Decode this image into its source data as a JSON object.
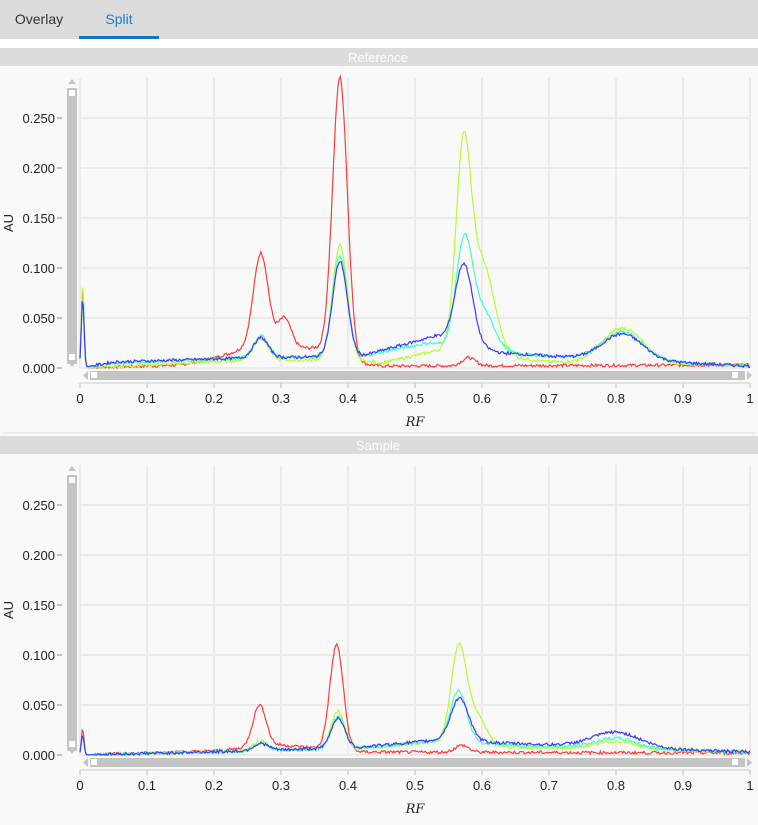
{
  "tabs": [
    {
      "label": "Overlay",
      "active": false
    },
    {
      "label": "Split",
      "active": true
    }
  ],
  "colors": {
    "red": "#ff3b3b",
    "green": "#b4ff2e",
    "cyan": "#3dffc8",
    "blue": "#3b3bff",
    "accent": "#0a78c8"
  },
  "chart_data": [
    {
      "type": "line",
      "title": "Reference",
      "xlabel": "RF",
      "ylabel": "AU",
      "xlim": [
        0,
        1
      ],
      "ylim": [
        0,
        0.29
      ],
      "xticks": [
        "0",
        "0.1",
        "0.2",
        "0.3",
        "0.4",
        "0.5",
        "0.6",
        "0.7",
        "0.8",
        "0.9",
        "1"
      ],
      "yticks": [
        "0.000",
        "0.050",
        "0.100",
        "0.150",
        "0.200",
        "0.250"
      ],
      "series": [
        {
          "name": "red",
          "peaks": [
            [
              0.004,
              0.08,
              0.002
            ],
            [
              0.27,
              0.095,
              0.011
            ],
            [
              0.305,
              0.03,
              0.01
            ],
            [
              0.388,
              0.28,
              0.011
            ],
            [
              0.58,
              0.008,
              0.01
            ]
          ],
          "baseline": [
            [
              0,
              0
            ],
            [
              0.15,
              0.003
            ],
            [
              0.2,
              0.01
            ],
            [
              0.25,
              0.02
            ],
            [
              0.35,
              0.02
            ],
            [
              0.41,
              0.005
            ],
            [
              0.45,
              0.002
            ],
            [
              1,
              0.003
            ]
          ]
        },
        {
          "name": "green",
          "peaks": [
            [
              0.004,
              0.085,
              0.002
            ],
            [
              0.27,
              0.022,
              0.011
            ],
            [
              0.388,
              0.115,
              0.011
            ],
            [
              0.572,
              0.19,
              0.011
            ],
            [
              0.6,
              0.09,
              0.018
            ],
            [
              0.81,
              0.035,
              0.03
            ]
          ],
          "baseline": [
            [
              0,
              0
            ],
            [
              0.1,
              0.003
            ],
            [
              0.25,
              0.008
            ],
            [
              0.4,
              0.008
            ],
            [
              0.45,
              0.005
            ],
            [
              0.55,
              0.02
            ],
            [
              0.63,
              0.012
            ],
            [
              0.7,
              0.006
            ],
            [
              1,
              0.003
            ]
          ]
        },
        {
          "name": "cyan",
          "peaks": [
            [
              0.004,
              0.07,
              0.002
            ],
            [
              0.27,
              0.022,
              0.011
            ],
            [
              0.388,
              0.1,
              0.011
            ],
            [
              0.573,
              0.1,
              0.012
            ],
            [
              0.6,
              0.04,
              0.018
            ],
            [
              0.81,
              0.028,
              0.03
            ]
          ],
          "baseline": [
            [
              0,
              0
            ],
            [
              0.05,
              0.005
            ],
            [
              0.25,
              0.01
            ],
            [
              0.42,
              0.012
            ],
            [
              0.52,
              0.025
            ],
            [
              0.63,
              0.015
            ],
            [
              0.75,
              0.01
            ],
            [
              1,
              0.002
            ]
          ]
        },
        {
          "name": "blue",
          "peaks": [
            [
              0.004,
              0.07,
              0.002
            ],
            [
              0.27,
              0.02,
              0.011
            ],
            [
              0.388,
              0.095,
              0.011
            ],
            [
              0.573,
              0.08,
              0.013
            ],
            [
              0.81,
              0.026,
              0.03
            ]
          ],
          "baseline": [
            [
              0,
              0
            ],
            [
              0.05,
              0.006
            ],
            [
              0.25,
              0.01
            ],
            [
              0.42,
              0.012
            ],
            [
              0.53,
              0.032
            ],
            [
              0.63,
              0.015
            ],
            [
              0.75,
              0.01
            ],
            [
              1,
              0.002
            ]
          ]
        }
      ]
    },
    {
      "type": "line",
      "title": "Sample",
      "xlabel": "RF",
      "ylabel": "AU",
      "xlim": [
        0,
        1
      ],
      "ylim": [
        0,
        0.29
      ],
      "xticks": [
        "0",
        "0.1",
        "0.2",
        "0.3",
        "0.4",
        "0.5",
        "0.6",
        "0.7",
        "0.8",
        "0.9",
        "1"
      ],
      "yticks": [
        "0.000",
        "0.050",
        "0.100",
        "0.150",
        "0.200",
        "0.250"
      ],
      "series": [
        {
          "name": "red",
          "peaks": [
            [
              0.004,
              0.026,
              0.002
            ],
            [
              0.268,
              0.042,
              0.01
            ],
            [
              0.383,
              0.105,
              0.01
            ],
            [
              0.57,
              0.007,
              0.01
            ]
          ],
          "baseline": [
            [
              0,
              0
            ],
            [
              0.2,
              0.004
            ],
            [
              0.3,
              0.01
            ],
            [
              0.42,
              0.003
            ],
            [
              1,
              0.002
            ]
          ]
        },
        {
          "name": "green",
          "peaks": [
            [
              0.004,
              0.02,
              0.002
            ],
            [
              0.27,
              0.01,
              0.011
            ],
            [
              0.385,
              0.038,
              0.01
            ],
            [
              0.565,
              0.09,
              0.011
            ],
            [
              0.59,
              0.03,
              0.015
            ],
            [
              0.8,
              0.008,
              0.03
            ]
          ],
          "baseline": [
            [
              0,
              0
            ],
            [
              0.25,
              0.004
            ],
            [
              0.42,
              0.006
            ],
            [
              0.55,
              0.015
            ],
            [
              0.63,
              0.008
            ],
            [
              1,
              0.003
            ]
          ]
        },
        {
          "name": "cyan",
          "peaks": [
            [
              0.004,
              0.02,
              0.002
            ],
            [
              0.27,
              0.008,
              0.011
            ],
            [
              0.385,
              0.032,
              0.01
            ],
            [
              0.565,
              0.05,
              0.012
            ],
            [
              0.8,
              0.01,
              0.03
            ]
          ],
          "baseline": [
            [
              0,
              0
            ],
            [
              0.25,
              0.004
            ],
            [
              0.42,
              0.007
            ],
            [
              0.55,
              0.015
            ],
            [
              0.63,
              0.01
            ],
            [
              1,
              0.003
            ]
          ]
        },
        {
          "name": "blue",
          "peaks": [
            [
              0.004,
              0.02,
              0.002
            ],
            [
              0.27,
              0.007,
              0.011
            ],
            [
              0.385,
              0.03,
              0.01
            ],
            [
              0.567,
              0.042,
              0.013
            ],
            [
              0.8,
              0.015,
              0.035
            ]
          ],
          "baseline": [
            [
              0,
              0
            ],
            [
              0.25,
              0.004
            ],
            [
              0.42,
              0.008
            ],
            [
              0.55,
              0.016
            ],
            [
              0.63,
              0.012
            ],
            [
              1,
              0.003
            ]
          ]
        }
      ]
    }
  ]
}
